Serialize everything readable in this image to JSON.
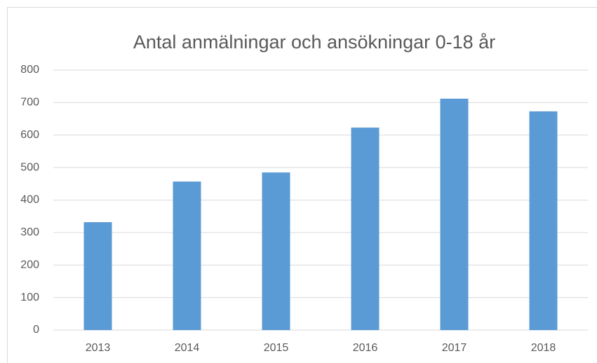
{
  "chart_data": {
    "type": "bar",
    "title": "Antal anmälningar och ansökningar 0-18 år",
    "categories": [
      "2013",
      "2014",
      "2015",
      "2016",
      "2017",
      "2018"
    ],
    "values": [
      332,
      457,
      485,
      623,
      712,
      673
    ],
    "color": "#5b9bd5",
    "ylim": [
      0,
      800
    ],
    "yticks": [
      0,
      100,
      200,
      300,
      400,
      500,
      600,
      700,
      800
    ],
    "grid": true
  }
}
